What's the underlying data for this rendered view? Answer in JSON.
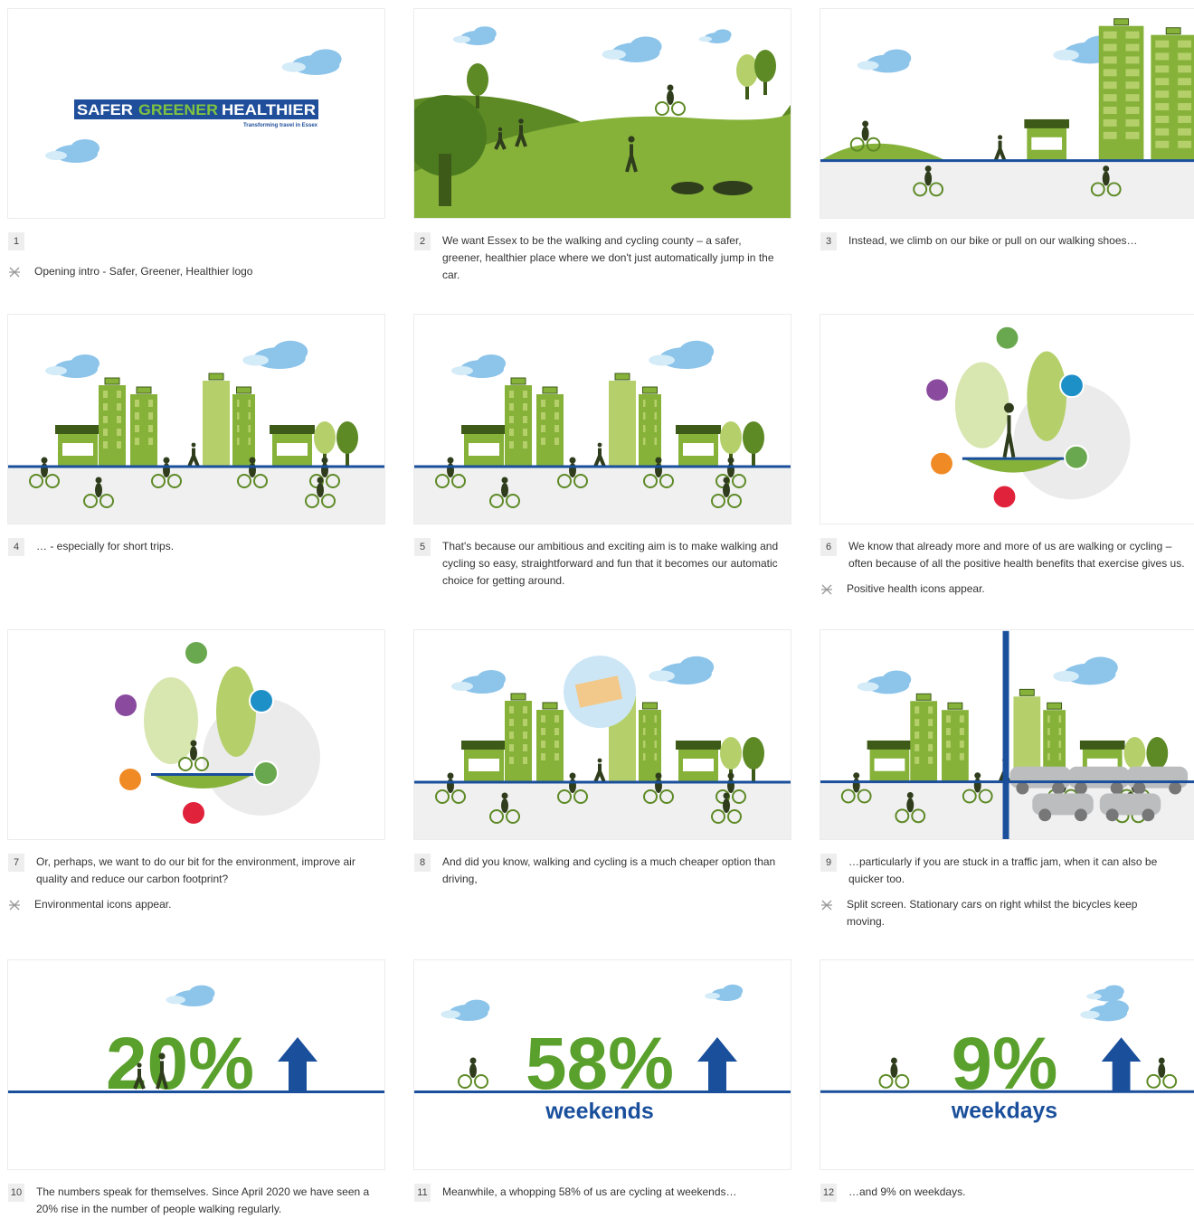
{
  "panels": [
    {
      "number": 1,
      "note": "Opening intro - Safer, Greener, Healthier logo",
      "logo": {
        "words": [
          "SAFER",
          "GREENER",
          "HEALTHIER"
        ],
        "tagline": "Transforming travel in Essex"
      }
    },
    {
      "number": 2,
      "caption": "We want Essex to be the walking and cycling county – a safer, greener, healthier place where we don't just automatically jump in the car."
    },
    {
      "number": 3,
      "caption": "Instead, we climb on our bike or pull on our walking shoes…"
    },
    {
      "number": 4,
      "caption": "… - especially for short trips."
    },
    {
      "number": 5,
      "caption": "That's because our ambitious and exciting aim is to make walking and cycling so easy, straightforward and fun that it becomes our automatic choice for getting around."
    },
    {
      "number": 6,
      "caption": "We know that already more and more of us are walking or cycling – often because of all the positive health benefits that exercise gives us.",
      "note": "Positive health icons appear."
    },
    {
      "number": 7,
      "caption": "Or, perhaps, we want to do our bit for the environment, improve air quality and reduce our carbon footprint?",
      "note": "Environmental icons appear."
    },
    {
      "number": 8,
      "caption": "And did you know, walking and cycling is a much cheaper option than driving,"
    },
    {
      "number": 9,
      "caption": "…particularly if you are stuck in a traffic jam, when it can also be quicker too.",
      "note": "Split screen. Stationary cars on right whilst the bicycles keep moving."
    },
    {
      "number": 10,
      "caption": "The numbers speak for themselves. Since April 2020 we have seen a 20% rise in the number of people walking regularly.",
      "stat": "20%"
    },
    {
      "number": 11,
      "caption": "Meanwhile, a whopping 58% of us are cycling at weekends…",
      "stat": "58%",
      "stat_label": "weekends"
    },
    {
      "number": 12,
      "caption": "…and 9% on weekdays.",
      "stat": "9%",
      "stat_label": "weekdays"
    }
  ]
}
